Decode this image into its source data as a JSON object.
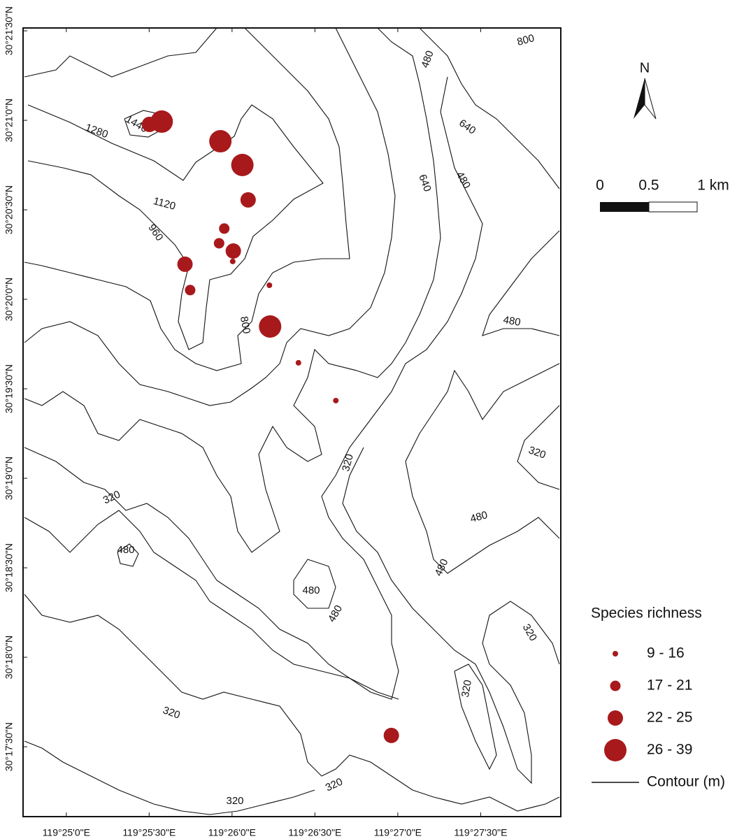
{
  "map": {
    "lon_lim": [
      119.41232,
      119.46639
    ],
    "lat_lim": [
      30.28516,
      30.3586
    ],
    "lon_ticks": [
      {
        "value": 119.416667,
        "label": "119°25'0\"E"
      },
      {
        "value": 119.425,
        "label": "119°25'30\"E"
      },
      {
        "value": 119.433333,
        "label": "119°26'0\"E"
      },
      {
        "value": 119.441667,
        "label": "119°26'30\"E"
      },
      {
        "value": 119.45,
        "label": "119°27'0\"E"
      },
      {
        "value": 119.458333,
        "label": "119°27'30\"E"
      }
    ],
    "lat_ticks": [
      {
        "value": 30.291667,
        "label": "30°17'30\"N"
      },
      {
        "value": 30.3,
        "label": "30°18'0\"N"
      },
      {
        "value": 30.308333,
        "label": "30°18'30\"N"
      },
      {
        "value": 30.316667,
        "label": "30°19'0\"N"
      },
      {
        "value": 30.325,
        "label": "30°19'30\"N"
      },
      {
        "value": 30.333333,
        "label": "30°20'0\"N"
      },
      {
        "value": 30.341667,
        "label": "30°20'30\"N"
      },
      {
        "value": 30.35,
        "label": "30°21'0\"N"
      },
      {
        "value": 30.358333,
        "label": "30°21'30\"N"
      }
    ],
    "points": [
      {
        "lon": 119.42503,
        "lat": 30.34962,
        "class": "22 - 25"
      },
      {
        "lon": 119.42626,
        "lat": 30.34988,
        "class": "26 - 39"
      },
      {
        "lon": 119.43216,
        "lat": 30.34805,
        "class": "26 - 39"
      },
      {
        "lon": 119.43437,
        "lat": 30.34584,
        "class": "26 - 39"
      },
      {
        "lon": 119.43495,
        "lat": 30.34259,
        "class": "22 - 25"
      },
      {
        "lon": 119.43255,
        "lat": 30.33992,
        "class": "17 - 21"
      },
      {
        "lon": 119.43203,
        "lat": 30.33855,
        "class": "17 - 21"
      },
      {
        "lon": 119.43346,
        "lat": 30.33783,
        "class": "22 - 25"
      },
      {
        "lon": 119.4334,
        "lat": 30.33686,
        "class": "9 - 16"
      },
      {
        "lon": 119.4286,
        "lat": 30.3366,
        "class": "22 - 25"
      },
      {
        "lon": 119.42912,
        "lat": 30.33419,
        "class": "17 - 21"
      },
      {
        "lon": 119.43709,
        "lat": 30.33464,
        "class": "9 - 16"
      },
      {
        "lon": 119.43716,
        "lat": 30.3308,
        "class": "26 - 39"
      },
      {
        "lon": 119.44001,
        "lat": 30.32742,
        "class": "9 - 16"
      },
      {
        "lon": 119.44377,
        "lat": 30.3239,
        "class": "9 - 16"
      },
      {
        "lon": 119.44935,
        "lat": 30.29272,
        "class": "22 - 25"
      }
    ],
    "point_color": "#a8191c",
    "contour_labels": [
      1440,
      1280,
      1120,
      960,
      800,
      640,
      800,
      480,
      640,
      480,
      480,
      320,
      320,
      320,
      480,
      480,
      480,
      480,
      480,
      320,
      320,
      320,
      320,
      320
    ],
    "north": "N",
    "scale_labels": [
      "0",
      "0.5",
      "1 km"
    ],
    "legend": {
      "title": "Species richness",
      "classes": [
        "9 - 16",
        "17 - 21",
        "22 - 25",
        "26 - 39"
      ],
      "contour": "Contour (m)"
    }
  }
}
